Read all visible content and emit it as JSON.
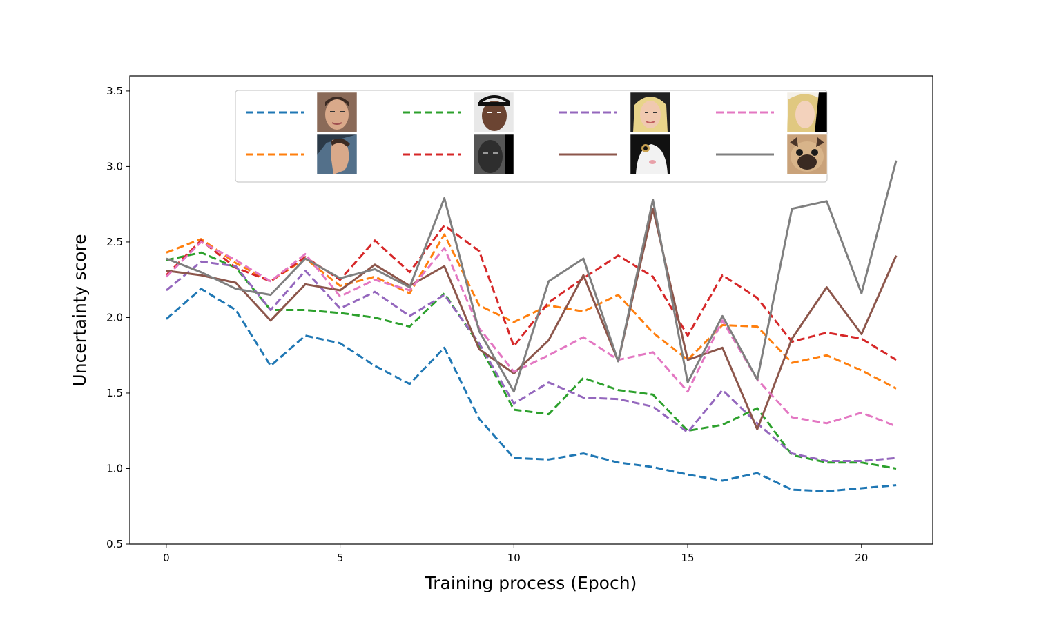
{
  "chart_data": {
    "type": "line",
    "title": "",
    "xlabel": "Training process (Epoch)",
    "ylabel": "Uncertainty score",
    "xlim": [
      -1.05,
      22.05
    ],
    "ylim": [
      0.5,
      3.6
    ],
    "xticks": [
      0,
      5,
      10,
      15,
      20
    ],
    "yticks": [
      0.5,
      1.0,
      1.5,
      2.0,
      2.5,
      3.0,
      3.5
    ],
    "xtick_labels": [
      "0",
      "5",
      "10",
      "15",
      "20"
    ],
    "ytick_labels": [
      "0.5",
      "1.0",
      "1.5",
      "2.0",
      "2.5",
      "3.0",
      "3.5"
    ],
    "grid": false,
    "legend": {
      "placement": "upper-center",
      "columns": 4,
      "entries": [
        "face-1",
        "face-2",
        "face-3",
        "face-4",
        "face-5",
        "face-6",
        "face-7",
        "face-8"
      ]
    },
    "x": [
      0,
      1,
      2,
      3,
      4,
      5,
      6,
      7,
      8,
      9,
      10,
      11,
      12,
      13,
      14,
      15,
      16,
      17,
      18,
      19,
      20,
      21
    ],
    "series": [
      {
        "key": "face-1",
        "color": "#1f77b4",
        "dash": "dashed",
        "thumbnail": "male-face-frontal-icon",
        "values": [
          1.99,
          2.19,
          2.05,
          1.68,
          1.88,
          1.83,
          1.68,
          1.56,
          1.8,
          1.33,
          1.07,
          1.06,
          1.1,
          1.04,
          1.01,
          0.96,
          0.92,
          0.97,
          0.86,
          0.85,
          0.87,
          0.89
        ]
      },
      {
        "key": "face-2",
        "color": "#ff7f0e",
        "dash": "dashed",
        "thumbnail": "male-face-profile-icon",
        "values": [
          2.43,
          2.52,
          2.36,
          2.24,
          2.39,
          2.21,
          2.27,
          2.16,
          2.55,
          2.08,
          1.97,
          2.08,
          2.04,
          2.15,
          1.9,
          1.72,
          1.95,
          1.94,
          1.7,
          1.75,
          1.65,
          1.53
        ]
      },
      {
        "key": "face-3",
        "color": "#2ca02c",
        "dash": "dashed",
        "thumbnail": "male-face-cap-icon",
        "values": [
          2.38,
          2.43,
          2.33,
          2.05,
          2.05,
          2.03,
          2.0,
          1.94,
          2.16,
          1.82,
          1.39,
          1.36,
          1.6,
          1.52,
          1.49,
          1.25,
          1.29,
          1.4,
          1.09,
          1.04,
          1.04,
          1.0
        ]
      },
      {
        "key": "face-4",
        "color": "#d62728",
        "dash": "dashed",
        "thumbnail": "male-face-dark-icon",
        "values": [
          2.28,
          2.51,
          2.33,
          2.24,
          2.4,
          2.25,
          2.51,
          2.3,
          2.61,
          2.44,
          1.81,
          2.1,
          2.26,
          2.41,
          2.27,
          1.88,
          2.28,
          2.13,
          1.84,
          1.9,
          1.86,
          1.72
        ]
      },
      {
        "key": "face-5",
        "color": "#9467bd",
        "dash": "dashed",
        "thumbnail": "female-face-frontal-icon",
        "values": [
          2.18,
          2.37,
          2.34,
          2.05,
          2.31,
          2.06,
          2.17,
          2.01,
          2.15,
          1.83,
          1.43,
          1.57,
          1.47,
          1.46,
          1.41,
          1.24,
          1.52,
          1.3,
          1.1,
          1.05,
          1.05,
          1.07
        ]
      },
      {
        "key": "face-6",
        "color": "#8c564b",
        "dash": "solid",
        "thumbnail": "cat-face-icon",
        "values": [
          2.31,
          2.28,
          2.23,
          1.98,
          2.22,
          2.18,
          2.35,
          2.21,
          2.34,
          1.79,
          1.63,
          1.85,
          2.28,
          1.71,
          2.72,
          1.72,
          1.8,
          1.26,
          1.86,
          2.2,
          1.89,
          2.41
        ]
      },
      {
        "key": "face-7",
        "color": "#e377c2",
        "dash": "dashed",
        "thumbnail": "female-face-side-icon",
        "values": [
          2.27,
          2.5,
          2.38,
          2.24,
          2.42,
          2.14,
          2.25,
          2.18,
          2.46,
          1.93,
          1.64,
          1.75,
          1.87,
          1.72,
          1.77,
          1.51,
          1.98,
          1.59,
          1.34,
          1.3,
          1.37,
          1.28
        ]
      },
      {
        "key": "face-8",
        "color": "#7f7f7f",
        "dash": "solid",
        "thumbnail": "pug-dog-face-icon",
        "values": [
          2.39,
          2.3,
          2.19,
          2.15,
          2.39,
          2.26,
          2.32,
          2.2,
          2.79,
          1.91,
          1.51,
          2.24,
          2.39,
          1.71,
          2.78,
          1.57,
          2.01,
          1.59,
          2.72,
          2.77,
          2.16,
          3.04
        ]
      }
    ]
  }
}
